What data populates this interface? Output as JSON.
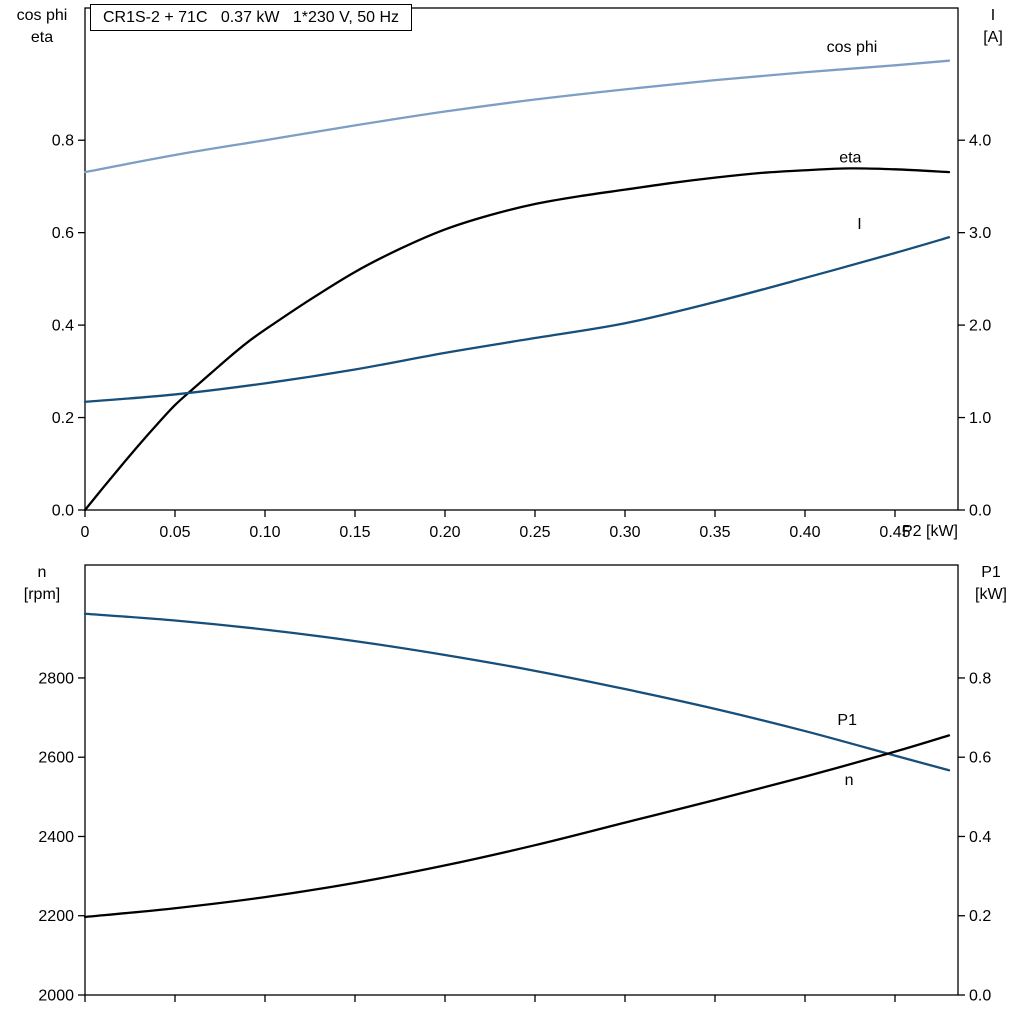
{
  "chart_data": [
    {
      "type": "line",
      "title": "CR1S-2 + 71C   0.37 kW   1*230 V, 50 Hz",
      "x_axis": {
        "label": "P2 [kW]",
        "min": 0,
        "max": 0.485,
        "ticks": [
          0,
          0.05,
          0.1,
          0.15,
          0.2,
          0.25,
          0.3,
          0.35,
          0.4,
          0.45
        ],
        "tick_labels": [
          "0",
          "0.05",
          "0.10",
          "0.15",
          "0.20",
          "0.25",
          "0.30",
          "0.35",
          "0.40",
          "0.45"
        ],
        "show_tick_labels": true
      },
      "left_axis": {
        "label_lines": [
          "cos phi",
          "eta"
        ],
        "min": 0,
        "max": 1.086,
        "ticks": [
          0,
          0.2,
          0.4,
          0.6,
          0.8
        ],
        "tick_labels": [
          "0.0",
          "0.2",
          "0.4",
          "0.6",
          "0.8"
        ]
      },
      "right_axis": {
        "label_lines": [
          "I",
          "[A]"
        ],
        "min": 0,
        "max": 5.43,
        "ticks": [
          0,
          1,
          2,
          3,
          4
        ],
        "tick_labels": [
          "0.0",
          "1.0",
          "2.0",
          "3.0",
          "4.0"
        ]
      },
      "series": [
        {
          "name": "cos phi",
          "axis": "left",
          "color": "#7e9fc5",
          "x": [
            0,
            0.05,
            0.1,
            0.15,
            0.2,
            0.25,
            0.3,
            0.35,
            0.4,
            0.45,
            0.48
          ],
          "y": [
            0.731,
            0.768,
            0.8,
            0.832,
            0.862,
            0.888,
            0.91,
            0.93,
            0.947,
            0.962,
            0.972
          ],
          "label": {
            "x": 0.412,
            "y": 0.991,
            "anchor": "start"
          }
        },
        {
          "name": "eta",
          "axis": "left",
          "color": "#000000",
          "x": [
            0,
            0.01,
            0.02,
            0.03,
            0.04,
            0.05,
            0.06,
            0.07,
            0.08,
            0.09,
            0.1,
            0.125,
            0.15,
            0.175,
            0.2,
            0.225,
            0.25,
            0.275,
            0.3,
            0.325,
            0.35,
            0.375,
            0.4,
            0.425,
            0.45,
            0.48
          ],
          "y": [
            0,
            0.048,
            0.095,
            0.141,
            0.185,
            0.227,
            0.262,
            0.296,
            0.33,
            0.362,
            0.39,
            0.455,
            0.515,
            0.565,
            0.607,
            0.638,
            0.662,
            0.679,
            0.693,
            0.707,
            0.719,
            0.729,
            0.735,
            0.739,
            0.737,
            0.731
          ],
          "label": {
            "x": 0.419,
            "y": 0.752,
            "anchor": "start"
          }
        },
        {
          "name": "I",
          "axis": "right",
          "color": "#164f7b",
          "x": [
            0,
            0.05,
            0.1,
            0.15,
            0.2,
            0.25,
            0.3,
            0.35,
            0.4,
            0.45,
            0.48
          ],
          "y": [
            1.17,
            1.25,
            1.37,
            1.52,
            1.7,
            1.86,
            2.02,
            2.25,
            2.51,
            2.78,
            2.95
          ],
          "label": {
            "x": 0.429,
            "y": 3.04,
            "anchor": "start"
          }
        }
      ]
    },
    {
      "type": "line",
      "title": "",
      "x_axis": {
        "label": "",
        "min": 0,
        "max": 0.485,
        "ticks": [
          0,
          0.05,
          0.1,
          0.15,
          0.2,
          0.25,
          0.3,
          0.35,
          0.4,
          0.45
        ],
        "tick_labels": [
          "",
          "",
          "",
          "",
          "",
          "",
          "",
          "",
          "",
          ""
        ],
        "show_tick_labels": false
      },
      "left_axis": {
        "label_lines": [
          "n",
          "[rpm]"
        ],
        "min": 2000,
        "max": 3085,
        "ticks": [
          2000,
          2200,
          2400,
          2600,
          2800
        ],
        "tick_labels": [
          "2000",
          "2200",
          "2400",
          "2600",
          "2800"
        ]
      },
      "right_axis": {
        "label_lines": [
          "P1",
          "[kW]"
        ],
        "min": 0,
        "max": 1.085,
        "ticks": [
          0,
          0.2,
          0.4,
          0.6,
          0.8
        ],
        "tick_labels": [
          "0.0",
          "0.2",
          "0.4",
          "0.6",
          "0.8"
        ]
      },
      "series": [
        {
          "name": "n",
          "axis": "left",
          "color": "#164f7b",
          "x": [
            0,
            0.05,
            0.1,
            0.15,
            0.2,
            0.25,
            0.3,
            0.35,
            0.4,
            0.45,
            0.48
          ],
          "y": [
            2962,
            2945,
            2922,
            2893,
            2858,
            2818,
            2772,
            2722,
            2666,
            2604,
            2567
          ],
          "label": {
            "x": 0.422,
            "y": 2530,
            "anchor": "start"
          }
        },
        {
          "name": "P1",
          "axis": "right",
          "color": "#000000",
          "x": [
            0,
            0.05,
            0.1,
            0.15,
            0.2,
            0.25,
            0.3,
            0.35,
            0.4,
            0.45,
            0.48
          ],
          "y": [
            0.197,
            0.219,
            0.247,
            0.283,
            0.327,
            0.378,
            0.435,
            0.492,
            0.551,
            0.614,
            0.655
          ],
          "label": {
            "x": 0.418,
            "y": 0.681,
            "anchor": "start"
          }
        }
      ]
    }
  ],
  "style": {
    "axis_color": "#000000",
    "curve_width": 2.3,
    "frame_width": 1.3
  }
}
